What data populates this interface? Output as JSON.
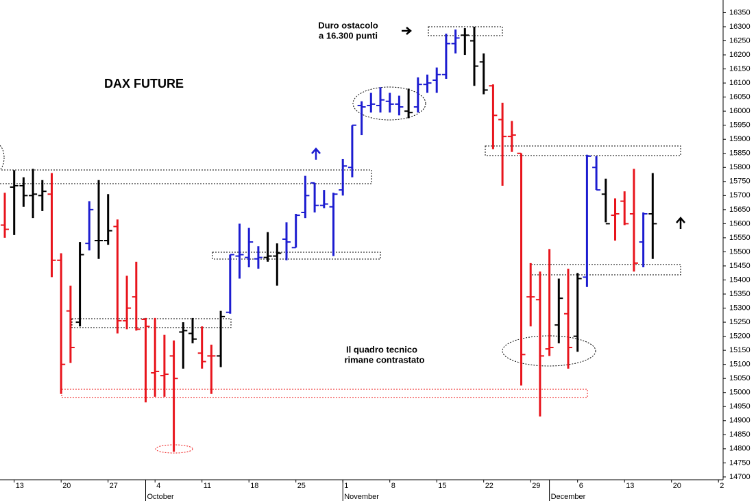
{
  "chart_data": {
    "type": "ohlc",
    "title": "DAX FUTURE",
    "annotations": [
      "Duro ostacolo",
      "a 16.300 punti",
      "Il quadro tecnico",
      "rimane contrastato"
    ],
    "categories": [
      null,
      "13",
      null,
      null,
      null,
      null,
      "20",
      null,
      null,
      null,
      null,
      "27",
      null,
      null,
      null,
      null,
      "4",
      null,
      null,
      null,
      null,
      "11",
      null,
      null,
      null,
      null,
      "18",
      null,
      null,
      null,
      null,
      "25",
      null,
      null,
      null,
      null,
      "1",
      null,
      null,
      null,
      null,
      "8",
      null,
      null,
      null,
      null,
      "15",
      null,
      null,
      null,
      null,
      "22",
      null,
      null,
      null,
      null,
      "29",
      null,
      null,
      null,
      null,
      "6",
      null,
      null,
      null,
      null,
      "13",
      null,
      null,
      null,
      null,
      "20",
      null,
      null,
      null,
      null,
      "2"
    ],
    "month_labels": [
      null,
      null,
      null,
      null,
      null,
      null,
      null,
      null,
      null,
      null,
      null,
      null,
      null,
      null,
      null,
      "October",
      null,
      null,
      null,
      null,
      null,
      null,
      null,
      null,
      null,
      null,
      null,
      null,
      null,
      null,
      null,
      null,
      null,
      null,
      null,
      null,
      "November",
      null,
      null,
      null,
      null,
      null,
      null,
      null,
      null,
      null,
      null,
      null,
      null,
      null,
      null,
      null,
      null,
      null,
      null,
      null,
      null,
      null,
      "December",
      null,
      null,
      null,
      null,
      null,
      null,
      null,
      null,
      null,
      null,
      null,
      null,
      null,
      null,
      null,
      null,
      null,
      null
    ],
    "open": [
      15595,
      15730,
      15735,
      15700,
      15700,
      15705,
      15470,
      15290,
      15250,
      15530,
      15540,
      15540,
      15590,
      15255,
      15340,
      15260,
      15070,
      15060,
      15130,
      15215,
      15210,
      15140,
      15130,
      15130,
      15285,
      15485,
      15480,
      15475,
      15480,
      15485,
      15545,
      15515,
      15640,
      15745,
      15665,
      15660,
      15720,
      15800,
      16020,
      16020,
      16020,
      16035,
      16025,
      16000,
      16015,
      16095,
      16110,
      16130,
      16240,
      16270,
      16250,
      16175,
      16090,
      15970,
      15910,
      15850,
      15340,
      15330,
      15155,
      15240,
      15280,
      15200,
      15410,
      15800,
      15705,
      15630,
      15680,
      15635,
      15535,
      15635,
      null,
      null,
      null,
      null,
      null,
      null,
      null
    ],
    "high": [
      15710,
      15790,
      15765,
      15795,
      15755,
      15780,
      15495,
      15380,
      15535,
      15680,
      15755,
      15705,
      15615,
      15415,
      15465,
      15265,
      15265,
      15205,
      15185,
      15250,
      15265,
      15235,
      15170,
      15290,
      15490,
      15600,
      15585,
      15520,
      15570,
      15530,
      15605,
      15635,
      15770,
      15745,
      15720,
      15710,
      15830,
      15950,
      16035,
      16065,
      16085,
      16065,
      16055,
      16080,
      16120,
      16130,
      16155,
      16275,
      16290,
      16295,
      16300,
      16205,
      16095,
      16030,
      15965,
      15850,
      15460,
      15430,
      15510,
      15405,
      15440,
      15425,
      15845,
      15840,
      15760,
      15690,
      15715,
      15795,
      15640,
      15780,
      null,
      null,
      null,
      null,
      null,
      null,
      null
    ],
    "low": [
      15550,
      15560,
      15660,
      15620,
      15645,
      15410,
      14995,
      15105,
      15235,
      15505,
      15475,
      15525,
      15210,
      15225,
      15220,
      14965,
      14985,
      14985,
      14790,
      15085,
      15175,
      15085,
      14995,
      15090,
      15280,
      15405,
      15445,
      15440,
      15465,
      15380,
      15470,
      15515,
      15620,
      15640,
      15655,
      15485,
      15700,
      15765,
      15915,
      15995,
      15995,
      15995,
      15985,
      15975,
      15995,
      16065,
      16065,
      16115,
      16205,
      16200,
      16090,
      16060,
      15865,
      15735,
      15855,
      15025,
      15235,
      14915,
      15130,
      15175,
      15085,
      15145,
      15375,
      15720,
      15605,
      15540,
      15595,
      15430,
      15445,
      15475,
      null,
      null,
      null,
      null,
      null,
      null,
      null
    ],
    "close": [
      15580,
      15735,
      15700,
      15705,
      15715,
      15470,
      15100,
      15160,
      15490,
      15650,
      15540,
      15575,
      15255,
      15300,
      15225,
      15235,
      15075,
      15065,
      15050,
      15220,
      15190,
      15110,
      15130,
      15270,
      15490,
      15490,
      15535,
      15480,
      15485,
      15495,
      15535,
      15630,
      15700,
      15665,
      15670,
      15705,
      15805,
      15950,
      16015,
      16025,
      16040,
      16025,
      16015,
      15995,
      16095,
      16100,
      16130,
      16240,
      16260,
      16270,
      16160,
      16075,
      15985,
      15910,
      15915,
      15135,
      15340,
      15130,
      15160,
      15335,
      15160,
      15405,
      15840,
      15720,
      15600,
      15635,
      15600,
      15460,
      15635,
      15600,
      null,
      null,
      null,
      null,
      null,
      null,
      null
    ],
    "bar_colors": [
      "#e8141c",
      "#000000",
      "#000000",
      "#000000",
      "#000000",
      "#e8141c",
      "#e8141c",
      "#e8141c",
      "#000000",
      "#1c1cd0",
      "#000000",
      "#000000",
      "#e8141c",
      "#e8141c",
      "#e8141c",
      "#e8141c",
      "#e8141c",
      "#e8141c",
      "#e8141c",
      "#000000",
      "#000000",
      "#e8141c",
      "#e8141c",
      "#000000",
      "#1c1cd0",
      "#1c1cd0",
      "#1c1cd0",
      "#1c1cd0",
      "#000000",
      "#000000",
      "#1c1cd0",
      "#1c1cd0",
      "#1c1cd0",
      "#1c1cd0",
      "#1c1cd0",
      "#1c1cd0",
      "#1c1cd0",
      "#1c1cd0",
      "#1c1cd0",
      "#1c1cd0",
      "#1c1cd0",
      "#1c1cd0",
      "#1c1cd0",
      "#000000",
      "#1c1cd0",
      "#1c1cd0",
      "#1c1cd0",
      "#1c1cd0",
      "#1c1cd0",
      "#000000",
      "#000000",
      "#000000",
      "#e8141c",
      "#e8141c",
      "#e8141c",
      "#e8141c",
      "#e8141c",
      "#e8141c",
      "#e8141c",
      "#000000",
      "#e8141c",
      "#000000",
      "#1c1cd0",
      "#1c1cd0",
      "#000000",
      "#e8141c",
      "#e8141c",
      "#e8141c",
      "#1c1cd0",
      "#000000",
      null,
      null,
      null,
      null,
      null,
      null,
      null
    ],
    "ylim": [
      14690,
      16395
    ],
    "yticks": [
      14700,
      14750,
      14800,
      14850,
      14900,
      14950,
      15000,
      15050,
      15100,
      15150,
      15200,
      15250,
      15300,
      15350,
      15400,
      15450,
      15500,
      15550,
      15600,
      15650,
      15700,
      15750,
      15800,
      15850,
      15900,
      15950,
      16000,
      16050,
      16100,
      16150,
      16200,
      16250,
      16300,
      16350
    ]
  }
}
